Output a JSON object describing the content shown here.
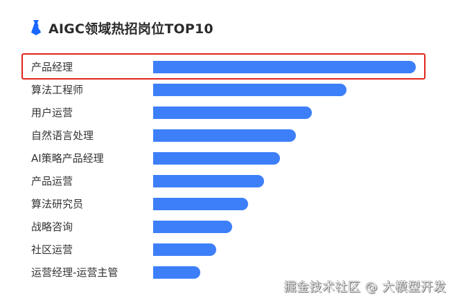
{
  "header": {
    "title": "AIGC领域热招岗位TOP10",
    "icon": "tie-icon",
    "icon_color": "#1a66ff"
  },
  "highlight": {
    "row_index": 0,
    "color": "#e0251c"
  },
  "watermark": "掘金技术社区 @ 大模型开发",
  "colors": {
    "bar": "#3d7ff9",
    "label": "#333333"
  },
  "chart_data": {
    "type": "bar",
    "orientation": "horizontal",
    "title": "AIGC领域热招岗位TOP10",
    "xlabel": "",
    "ylabel": "",
    "grid": false,
    "legend": null,
    "axis_values_shown": false,
    "categories": [
      "产品经理",
      "算法工程师",
      "用户运营",
      "自然语言处理",
      "AI策略产品经理",
      "产品运营",
      "算法研究员",
      "战略咨询",
      "社区运营",
      "运营经理-运营主管"
    ],
    "values": [
      100,
      73.6,
      60.4,
      54.4,
      48.3,
      42.2,
      36.1,
      30.1,
      24.0,
      17.9
    ],
    "value_note": "Relative bar lengths (max = 100); no numeric axis shown",
    "xlim": [
      0,
      100
    ]
  }
}
